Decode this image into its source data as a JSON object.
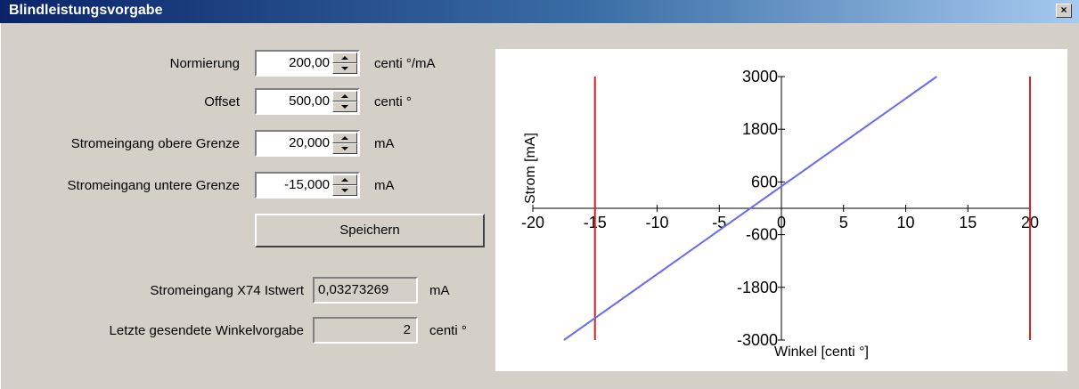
{
  "window": {
    "title": "Blindleistungsvorgabe",
    "close_glyph": "×"
  },
  "form": {
    "normierung": {
      "label": "Normierung",
      "value": "200,00",
      "unit": "centi °/mA"
    },
    "offset": {
      "label": "Offset",
      "value": "500,00",
      "unit": "centi °"
    },
    "obere_grenze": {
      "label": "Stromeingang obere Grenze",
      "value": "20,000",
      "unit": "mA"
    },
    "untere_grenze": {
      "label": "Stromeingang untere Grenze",
      "value": "-15,000",
      "unit": "mA"
    },
    "save_label": "Speichern"
  },
  "status": {
    "istwert": {
      "label": "Stromeingang X74 Istwert",
      "value": "0,03273269",
      "unit": "mA"
    },
    "winkel": {
      "label": "Letzte gesendete Winkelvorgabe",
      "value": "2",
      "unit": "centi °"
    }
  },
  "chart_data": {
    "type": "line",
    "xlabel": "Winkel [centi °]",
    "ylabel": "Strom [mA]",
    "xlim": [
      -20,
      20
    ],
    "ylim": [
      -3000,
      3000
    ],
    "x_ticks": [
      -20,
      -15,
      -10,
      -5,
      0,
      5,
      10,
      15,
      20
    ],
    "y_ticks": [
      3000,
      1800,
      600,
      -600,
      -1800,
      -3000
    ],
    "series": [
      {
        "x": [
          -17.5,
          12.5
        ],
        "y": [
          -3000,
          3000
        ],
        "color": "#6a6af0"
      }
    ],
    "vertical_lines": [
      {
        "x": -15,
        "color": "#e02020"
      },
      {
        "x": 20,
        "color": "#e02020"
      }
    ]
  }
}
